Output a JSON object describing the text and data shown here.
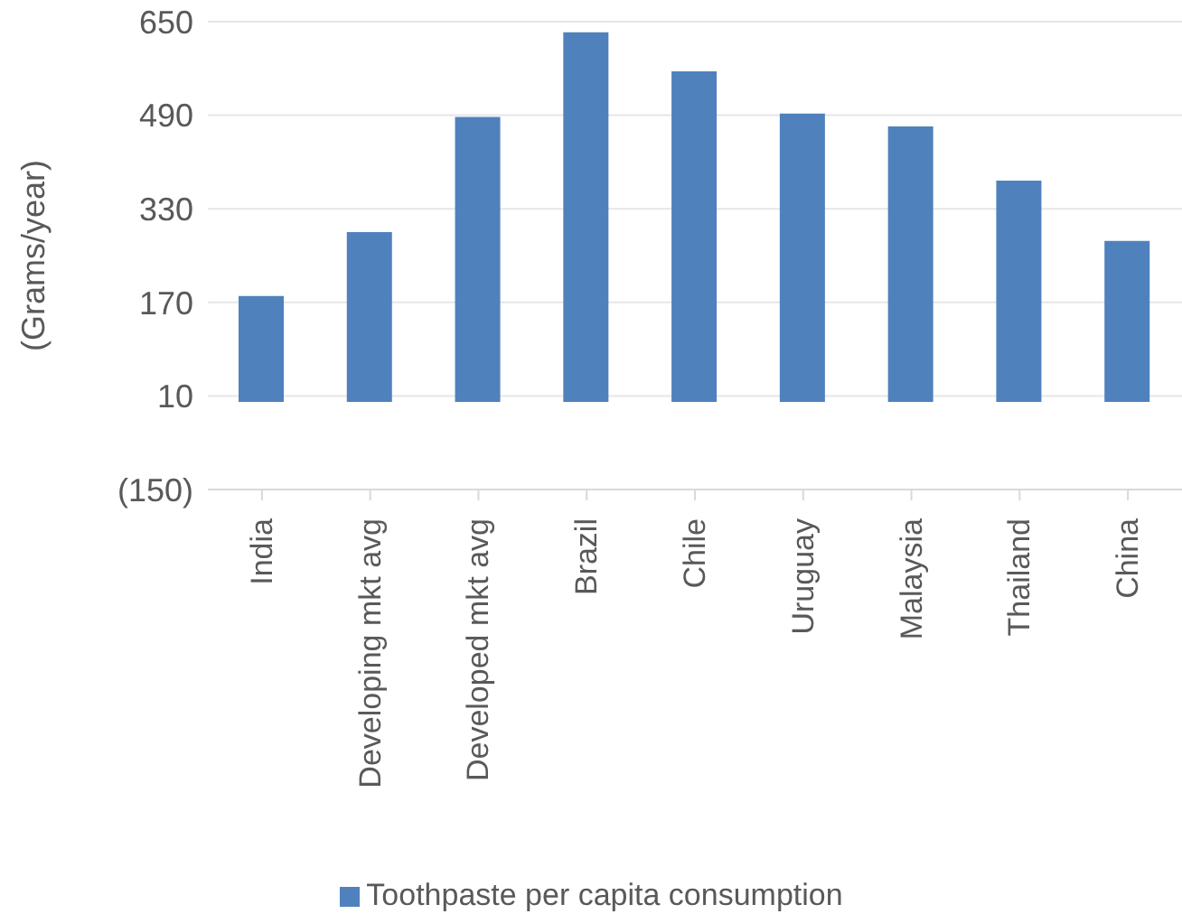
{
  "chart_data": {
    "type": "bar",
    "ylabel": "(Grams/year)",
    "categories": [
      "India",
      "Developing mkt avg",
      "Developed mkt avg",
      "Brazil",
      "Chile",
      "Uruguay",
      "Malaysia",
      "Thailand",
      "China"
    ],
    "series": [
      {
        "name": "Toothpaste per capita consumption",
        "color": "#4f81bd",
        "values": [
          181,
          290,
          487,
          632,
          565,
          493,
          471,
          378,
          275
        ]
      }
    ],
    "ylim": [
      -150,
      650
    ],
    "yticks": [
      {
        "value": -150,
        "label": "(150)"
      },
      10,
      170,
      330,
      490,
      650
    ],
    "grid": "y",
    "legend": "bottom"
  }
}
